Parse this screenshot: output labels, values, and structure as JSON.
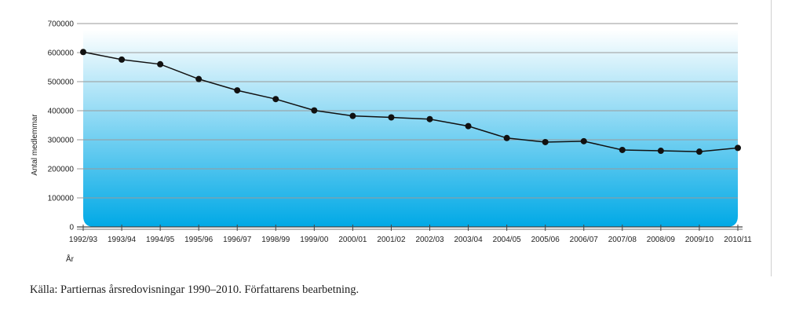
{
  "chart_data": {
    "type": "line",
    "categories": [
      "1992/93",
      "1993/94",
      "1994/95",
      "1995/96",
      "1996/97",
      "1998/99",
      "1999/00",
      "2000/01",
      "2001/02",
      "2002/03",
      "2003/04",
      "2004/05",
      "2005/06",
      "2006/07",
      "2007/08",
      "2008/09",
      "2009/10",
      "2010/11"
    ],
    "series": [
      {
        "values": [
          602000,
          576000,
          560000,
          509000,
          470000,
          440000,
          401000,
          382000,
          377000,
          371000,
          347000,
          306000,
          292000,
          295000,
          265000,
          262000,
          259000,
          272000
        ]
      }
    ],
    "yticks": [
      "0",
      "100000",
      "200000",
      "300000",
      "400000",
      "500000",
      "600000",
      "700000"
    ],
    "ylim": [
      0,
      700000
    ],
    "ylabel": "Antal medlemmar",
    "xlabel": "År",
    "grid": true,
    "colors": {
      "line": "#111111",
      "fill_top": "#ffffff",
      "fill_bottom": "#00a9e6",
      "grid": "#9a9a9a"
    }
  },
  "source_note": "Källa: Partiernas årsredovisningar 1990–2010. Författarens bearbetning."
}
